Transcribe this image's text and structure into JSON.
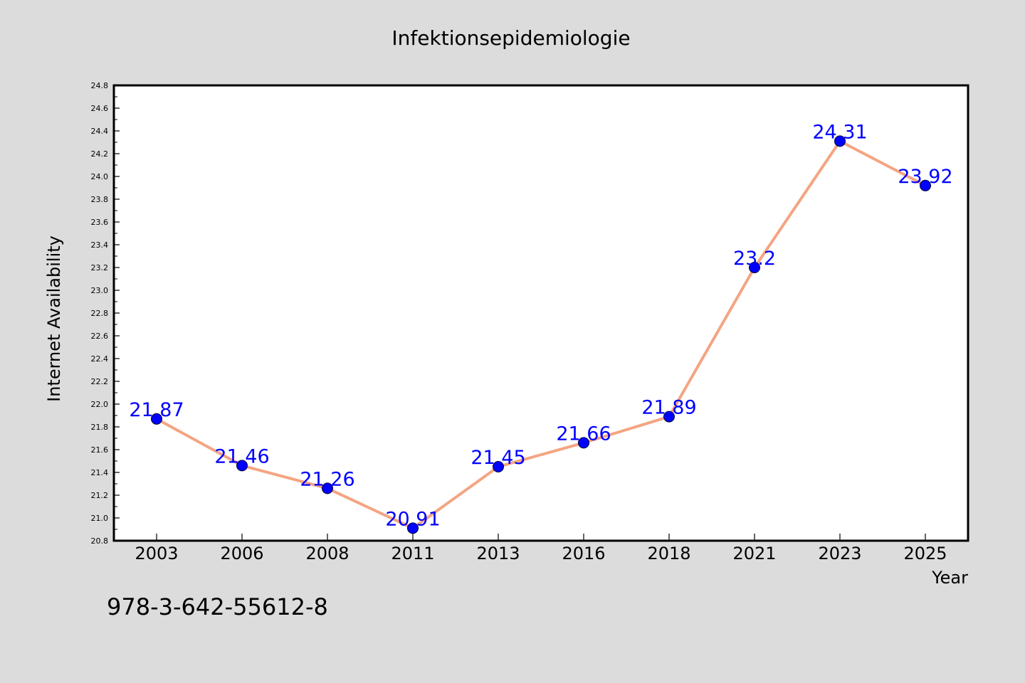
{
  "chart_data": {
    "type": "line",
    "title": "Infektionsepidemiologie",
    "xlabel": "Year",
    "ylabel": "Internet Availability",
    "categories": [
      "2003",
      "2006",
      "2008",
      "2011",
      "2013",
      "2016",
      "2018",
      "2021",
      "2023",
      "2025"
    ],
    "series": [
      {
        "values": [
          21.87,
          21.46,
          21.26,
          20.91,
          21.45,
          21.66,
          21.89,
          23.2,
          24.31,
          23.92
        ],
        "line_color": "#f4a582",
        "marker_color": "#0000ff"
      }
    ],
    "data_labels": [
      "21.87",
      "21.46",
      "21.26",
      "20.91",
      "21.45",
      "21.66",
      "21.89",
      "23.2",
      "24.31",
      "23.92"
    ],
    "ylim": [
      20.8,
      24.8
    ],
    "yticks": [
      "20.8",
      "21.0",
      "21.2",
      "21.4",
      "21.6",
      "21.8",
      "22.0",
      "22.2",
      "22.4",
      "22.6",
      "22.8",
      "23.0",
      "23.2",
      "23.4",
      "23.6",
      "23.8",
      "24.0",
      "24.2",
      "24.4",
      "24.6",
      "24.8"
    ],
    "grid": false,
    "legend": "none",
    "label_color": "#0000ff"
  },
  "footer_text": "978-3-642-55612-8",
  "colors": {
    "background": "#dcdcdc",
    "plot_background": "#ffffff",
    "axis": "#000000"
  }
}
